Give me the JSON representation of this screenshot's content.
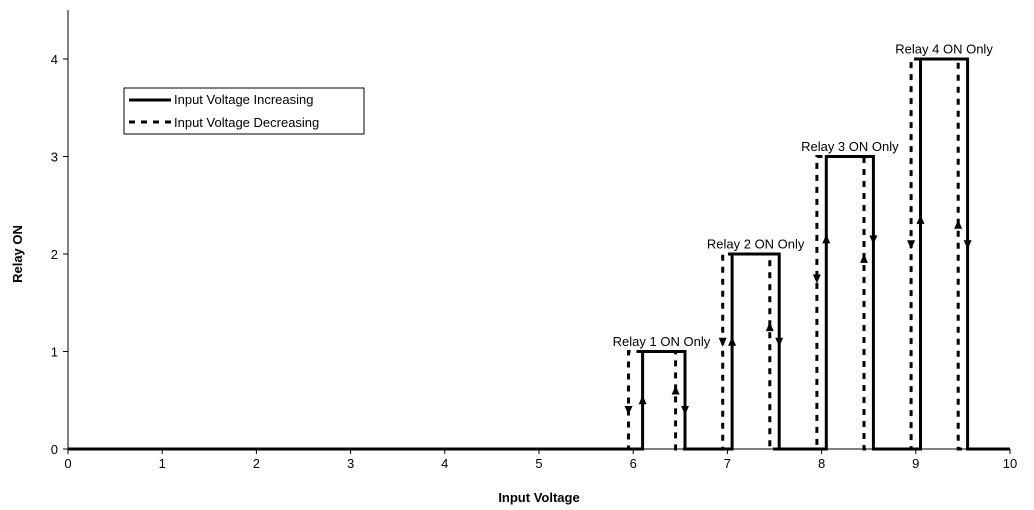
{
  "chart_data": {
    "type": "line",
    "xlabel": "Input Voltage",
    "ylabel": "Relay ON",
    "xlim": [
      0,
      10
    ],
    "ylim": [
      0,
      4
    ],
    "xticks": [
      "0",
      "1",
      "2",
      "3",
      "4",
      "5",
      "6",
      "7",
      "8",
      "9",
      "10"
    ],
    "yticks": [
      "0",
      "1",
      "2",
      "3",
      "4"
    ],
    "grid": false,
    "legend_position": "top-left",
    "series": [
      {
        "name": "Input Voltage Increasing",
        "style": "solid",
        "color": "#000000",
        "points": [
          [
            0,
            0
          ],
          [
            6.1,
            0
          ],
          [
            6.1,
            1
          ],
          [
            6.55,
            1
          ],
          [
            6.55,
            0
          ],
          [
            7.05,
            0
          ],
          [
            7.05,
            2
          ],
          [
            7.55,
            2
          ],
          [
            7.55,
            0
          ],
          [
            8.05,
            0
          ],
          [
            8.05,
            3
          ],
          [
            8.55,
            3
          ],
          [
            8.55,
            0
          ],
          [
            9.05,
            0
          ],
          [
            9.05,
            4
          ],
          [
            9.55,
            4
          ],
          [
            9.55,
            0
          ],
          [
            10,
            0
          ]
        ]
      },
      {
        "name": "Input Voltage Decreasing",
        "style": "dashed",
        "color": "#000000",
        "points": [
          [
            10,
            0
          ],
          [
            9.45,
            0
          ],
          [
            9.45,
            4
          ],
          [
            8.95,
            4
          ],
          [
            8.95,
            0
          ],
          [
            8.45,
            0
          ],
          [
            8.45,
            3
          ],
          [
            7.95,
            3
          ],
          [
            7.95,
            0
          ],
          [
            7.45,
            0
          ],
          [
            7.45,
            2
          ],
          [
            6.95,
            2
          ],
          [
            6.95,
            0
          ],
          [
            6.45,
            0
          ],
          [
            6.45,
            1
          ],
          [
            5.95,
            1
          ],
          [
            5.95,
            0
          ],
          [
            0,
            0
          ]
        ]
      }
    ],
    "arrows": [
      {
        "x": 6.1,
        "y": 0.5,
        "dir": "up"
      },
      {
        "x": 6.55,
        "y": 0.4,
        "dir": "down"
      },
      {
        "x": 5.95,
        "y": 0.4,
        "dir": "down"
      },
      {
        "x": 6.45,
        "y": 0.6,
        "dir": "up"
      },
      {
        "x": 7.05,
        "y": 1.1,
        "dir": "up"
      },
      {
        "x": 7.55,
        "y": 1.1,
        "dir": "down"
      },
      {
        "x": 6.95,
        "y": 1.1,
        "dir": "down"
      },
      {
        "x": 7.45,
        "y": 1.25,
        "dir": "up"
      },
      {
        "x": 8.05,
        "y": 2.15,
        "dir": "up"
      },
      {
        "x": 8.55,
        "y": 2.15,
        "dir": "down"
      },
      {
        "x": 7.95,
        "y": 1.75,
        "dir": "down"
      },
      {
        "x": 8.45,
        "y": 1.95,
        "dir": "up"
      },
      {
        "x": 9.05,
        "y": 2.35,
        "dir": "up"
      },
      {
        "x": 9.55,
        "y": 2.1,
        "dir": "down"
      },
      {
        "x": 8.95,
        "y": 2.1,
        "dir": "down"
      },
      {
        "x": 9.45,
        "y": 2.3,
        "dir": "up"
      }
    ],
    "annotations": [
      {
        "text": "Relay 1 ON Only",
        "x": 6.3,
        "y": 1.1
      },
      {
        "text": "Relay 2 ON Only",
        "x": 7.3,
        "y": 2.1
      },
      {
        "text": "Relay 3 ON Only",
        "x": 8.3,
        "y": 3.1
      },
      {
        "text": "Relay 4 ON Only",
        "x": 9.3,
        "y": 4.1
      }
    ]
  }
}
